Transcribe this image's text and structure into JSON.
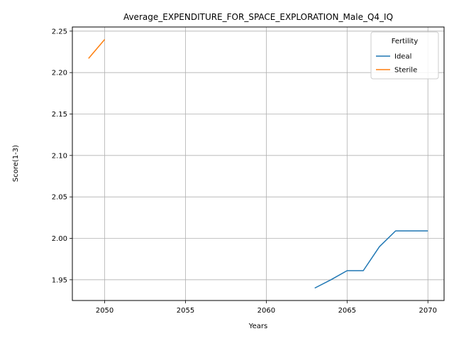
{
  "chart_data": {
    "type": "line",
    "title": "Average_EXPENDITURE_FOR_SPACE_EXPLORATION_Male_Q4_IQ",
    "xlabel": "Years",
    "ylabel": "Score(1-3)",
    "xlim": [
      2048,
      2071
    ],
    "ylim": [
      1.925,
      2.255
    ],
    "xticks": [
      2050,
      2055,
      2060,
      2065,
      2070
    ],
    "yticks": [
      1.95,
      2.0,
      2.05,
      2.1,
      2.15,
      2.2,
      2.25
    ],
    "ytick_labels": [
      "1.95",
      "2.00",
      "2.05",
      "2.10",
      "2.15",
      "2.20",
      "2.25"
    ],
    "grid": true,
    "legend": {
      "title": "Fertility",
      "position": "top-right"
    },
    "series": [
      {
        "name": "Ideal",
        "color": "#1f77b4",
        "x": [
          2063,
          2064,
          2065,
          2066,
          2067,
          2068,
          2069,
          2070
        ],
        "y": [
          1.94,
          1.95,
          1.961,
          1.961,
          1.99,
          2.009,
          2.009,
          2.009
        ]
      },
      {
        "name": "Sterile",
        "color": "#ff7f0e",
        "x": [
          2049,
          2050
        ],
        "y": [
          2.217,
          2.24
        ]
      }
    ]
  }
}
